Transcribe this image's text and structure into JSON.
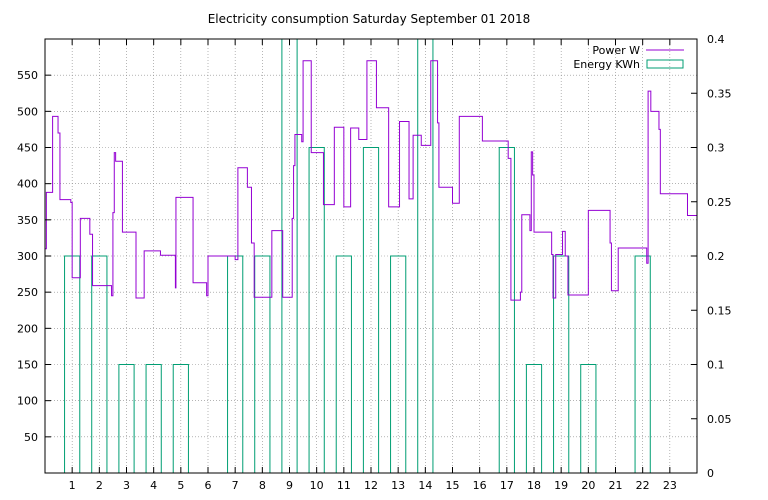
{
  "chart_data": {
    "type": "line",
    "title": "Electricity consumption Saturday September 01 2018",
    "xlabel": "",
    "ylabel": "",
    "x_ticks": [
      "1",
      "2",
      "3",
      "4",
      "5",
      "6",
      "7",
      "8",
      "9",
      "10",
      "11",
      "12",
      "13",
      "14",
      "15",
      "16",
      "17",
      "18",
      "19",
      "20",
      "21",
      "22",
      "23"
    ],
    "y_ticks": [
      "50",
      "100",
      "150",
      "200",
      "250",
      "300",
      "350",
      "400",
      "450",
      "500",
      "550"
    ],
    "y2_ticks": [
      "0",
      "0.05",
      "0.1",
      "0.15",
      "0.2",
      "0.25",
      "0.3",
      "0.35",
      "0.4"
    ],
    "xlim": [
      0,
      24
    ],
    "ylim": [
      0,
      600
    ],
    "y2lim": [
      0,
      0.4
    ],
    "grid": true,
    "legend_position": "top-right",
    "colors": {
      "power": "#9400d3",
      "energy": "#009e73",
      "grid": "#888888"
    },
    "series": [
      {
        "name": "Power W",
        "axis": "left",
        "style": "steps",
        "points": [
          [
            0.0,
            310
          ],
          [
            0.05,
            388
          ],
          [
            0.25,
            388
          ],
          [
            0.28,
            493
          ],
          [
            0.45,
            493
          ],
          [
            0.48,
            470
          ],
          [
            0.55,
            378
          ],
          [
            0.9,
            378
          ],
          [
            0.95,
            374
          ],
          [
            1.0,
            270
          ],
          [
            1.25,
            270
          ],
          [
            1.3,
            352
          ],
          [
            1.6,
            352
          ],
          [
            1.65,
            330
          ],
          [
            1.75,
            259
          ],
          [
            2.4,
            259
          ],
          [
            2.45,
            245
          ],
          [
            2.5,
            360
          ],
          [
            2.55,
            443
          ],
          [
            2.6,
            431
          ],
          [
            2.85,
            333
          ],
          [
            3.3,
            333
          ],
          [
            3.35,
            242
          ],
          [
            3.6,
            242
          ],
          [
            3.65,
            307
          ],
          [
            4.2,
            307
          ],
          [
            4.25,
            301
          ],
          [
            4.75,
            301
          ],
          [
            4.8,
            256
          ],
          [
            4.82,
            381
          ],
          [
            5.4,
            381
          ],
          [
            5.45,
            263
          ],
          [
            5.9,
            263
          ],
          [
            5.95,
            245
          ],
          [
            6.0,
            300
          ],
          [
            6.95,
            300
          ],
          [
            7.0,
            295
          ],
          [
            7.1,
            422
          ],
          [
            7.4,
            422
          ],
          [
            7.45,
            395
          ],
          [
            7.6,
            318
          ],
          [
            7.7,
            243
          ],
          [
            8.3,
            243
          ],
          [
            8.35,
            335
          ],
          [
            8.7,
            335
          ],
          [
            8.75,
            243
          ],
          [
            9.05,
            243
          ],
          [
            9.1,
            352
          ],
          [
            9.15,
            425
          ],
          [
            9.2,
            468
          ],
          [
            9.4,
            468
          ],
          [
            9.45,
            458
          ],
          [
            9.5,
            570
          ],
          [
            9.75,
            570
          ],
          [
            9.8,
            443
          ],
          [
            10.2,
            443
          ],
          [
            10.25,
            371
          ],
          [
            10.6,
            371
          ],
          [
            10.65,
            478
          ],
          [
            10.95,
            478
          ],
          [
            11.0,
            368
          ],
          [
            11.2,
            368
          ],
          [
            11.25,
            477
          ],
          [
            11.5,
            477
          ],
          [
            11.55,
            461
          ],
          [
            11.8,
            461
          ],
          [
            11.85,
            570
          ],
          [
            12.15,
            570
          ],
          [
            12.2,
            505
          ],
          [
            12.6,
            505
          ],
          [
            12.65,
            368
          ],
          [
            13.0,
            368
          ],
          [
            13.05,
            486
          ],
          [
            13.35,
            486
          ],
          [
            13.4,
            379
          ],
          [
            13.5,
            379
          ],
          [
            13.55,
            467
          ],
          [
            13.8,
            467
          ],
          [
            13.85,
            453
          ],
          [
            14.15,
            453
          ],
          [
            14.2,
            570
          ],
          [
            14.4,
            570
          ],
          [
            14.45,
            484
          ],
          [
            14.5,
            395
          ],
          [
            14.95,
            395
          ],
          [
            15.0,
            373
          ],
          [
            15.2,
            373
          ],
          [
            15.25,
            493
          ],
          [
            16.05,
            493
          ],
          [
            16.1,
            459
          ],
          [
            17.0,
            459
          ],
          [
            17.05,
            435
          ],
          [
            17.15,
            239
          ],
          [
            17.45,
            239
          ],
          [
            17.5,
            250
          ],
          [
            17.55,
            357
          ],
          [
            17.8,
            357
          ],
          [
            17.85,
            335
          ],
          [
            17.9,
            444
          ],
          [
            17.95,
            412
          ],
          [
            18.0,
            333
          ],
          [
            18.6,
            333
          ],
          [
            18.65,
            302
          ],
          [
            18.7,
            242
          ],
          [
            18.8,
            302
          ],
          [
            19.0,
            302
          ],
          [
            19.05,
            334
          ],
          [
            19.15,
            300
          ],
          [
            19.25,
            246
          ],
          [
            19.95,
            246
          ],
          [
            20.0,
            363
          ],
          [
            20.75,
            363
          ],
          [
            20.8,
            318
          ],
          [
            20.85,
            252
          ],
          [
            21.05,
            252
          ],
          [
            21.1,
            311
          ],
          [
            22.1,
            311
          ],
          [
            22.15,
            290
          ],
          [
            22.2,
            528
          ],
          [
            22.3,
            500
          ],
          [
            22.55,
            500
          ],
          [
            22.6,
            475
          ],
          [
            22.65,
            386
          ],
          [
            23.6,
            386
          ],
          [
            23.65,
            356
          ],
          [
            24.0,
            356
          ]
        ]
      },
      {
        "name": "Energy KWh",
        "axis": "right",
        "style": "impulse-bars",
        "bars": [
          [
            0.72,
            1.28,
            0.2
          ],
          [
            1.72,
            2.28,
            0.2
          ],
          [
            2.72,
            3.28,
            0.1
          ],
          [
            3.72,
            4.28,
            0.1
          ],
          [
            4.72,
            5.28,
            0.1
          ],
          [
            6.72,
            7.28,
            0.2
          ],
          [
            7.72,
            8.28,
            0.2
          ],
          [
            8.72,
            9.28,
            0.4
          ],
          [
            9.72,
            10.28,
            0.3
          ],
          [
            10.72,
            11.28,
            0.2
          ],
          [
            11.72,
            12.28,
            0.3
          ],
          [
            12.72,
            13.28,
            0.2
          ],
          [
            13.72,
            14.28,
            0.4
          ],
          [
            16.72,
            17.28,
            0.3
          ],
          [
            17.72,
            18.28,
            0.1
          ],
          [
            18.72,
            19.28,
            0.2
          ],
          [
            19.72,
            20.28,
            0.1
          ],
          [
            21.72,
            22.28,
            0.2
          ]
        ]
      }
    ]
  }
}
